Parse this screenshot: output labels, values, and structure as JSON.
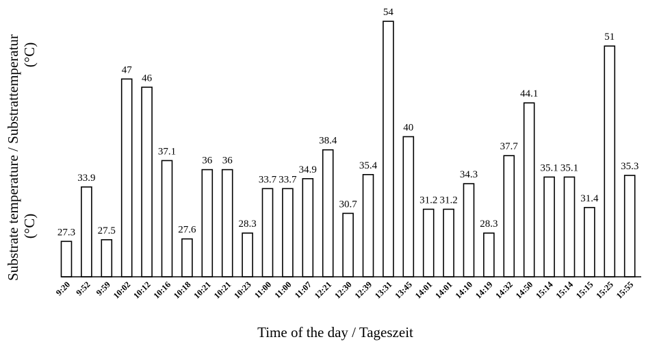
{
  "chart_data": {
    "type": "bar",
    "xlabel": "Time of the day / Tageszeit",
    "ylabel_line1": "Substrate temperature / Substrattemperatur",
    "ylabel_line2": "(°C)",
    "ylabel_line3": "(°C)",
    "grid": false,
    "bar_fill": "#ffffff",
    "bar_stroke": "#000000",
    "ylim": [
      23,
      54
    ],
    "categories": [
      "9:20",
      "9:52",
      "9:59",
      "10:02",
      "10:12",
      "10:16",
      "10:18",
      "10:21",
      "10:21",
      "10:23",
      "11:00",
      "11:00",
      "11:07",
      "12:21",
      "12:30",
      "12:39",
      "13:31",
      "13:45",
      "14:01",
      "14:01",
      "14:10",
      "14:19",
      "14:32",
      "14:50",
      "15:14",
      "15:14",
      "15:15",
      "15:25",
      "15:55"
    ],
    "values": [
      27.3,
      33.9,
      27.5,
      47,
      46,
      37.1,
      27.6,
      36,
      36,
      28.3,
      33.7,
      33.7,
      34.9,
      38.4,
      30.7,
      35.4,
      54,
      40,
      31.2,
      31.2,
      34.3,
      28.3,
      37.7,
      44.1,
      35.1,
      35.1,
      31.4,
      51,
      35.3
    ],
    "value_labels": [
      "27.3",
      "33.9",
      "27.5",
      "47",
      "46",
      "37.1",
      "27.6",
      "36",
      "36",
      "28.3",
      "33.7",
      "33.7",
      "34.9",
      "38.4",
      "30.7",
      "35.4",
      "54",
      "40",
      "31.2",
      "31.2",
      "34.3",
      "28.3",
      "37.7",
      "44.1",
      "35.1",
      "35.1",
      "31.4",
      "51",
      "35.3"
    ]
  }
}
